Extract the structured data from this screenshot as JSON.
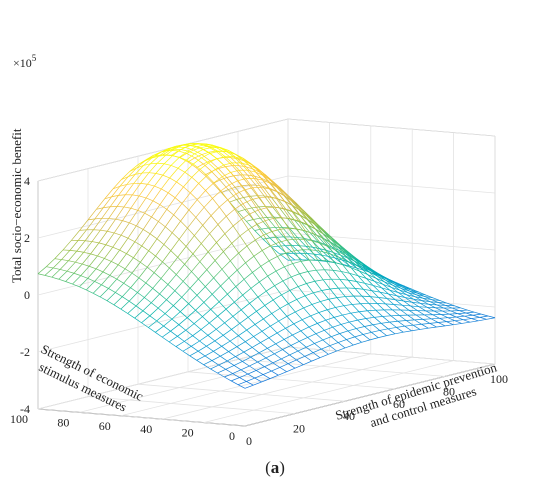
{
  "caption": {
    "open": "(",
    "letter": "a",
    "close": ")"
  },
  "chart_data": {
    "type": "surface",
    "xlabel_lines": [
      "Strength of epidemic prevention",
      "and control measures"
    ],
    "ylabel_lines": [
      "Strength of economic",
      "stimulus measures"
    ],
    "zlabel": "Total socio−economic benefit",
    "z_multiplier": "×10^5",
    "xlim": [
      0,
      100
    ],
    "ylim": [
      0,
      100
    ],
    "zlim": [
      -4,
      4
    ],
    "x_ticks": [
      "0",
      "20",
      "40",
      "60",
      "80",
      "100"
    ],
    "y_ticks": [
      "0",
      "20",
      "40",
      "60",
      "80",
      "100"
    ],
    "z_ticks": [
      "-4",
      "-2",
      "0",
      "2",
      "4"
    ],
    "grid": true,
    "colormap": "parula",
    "surface_corners": [
      {
        "x": 0,
        "y": 0,
        "z": -2.8
      },
      {
        "x": 100,
        "y": 0,
        "z": -2.5
      },
      {
        "x": 0,
        "y": 100,
        "z": -0.3
      },
      {
        "x": 100,
        "y": 100,
        "z": -2.0
      }
    ],
    "surface_peak": {
      "x": 50,
      "y": 80,
      "z": 4.3
    }
  }
}
